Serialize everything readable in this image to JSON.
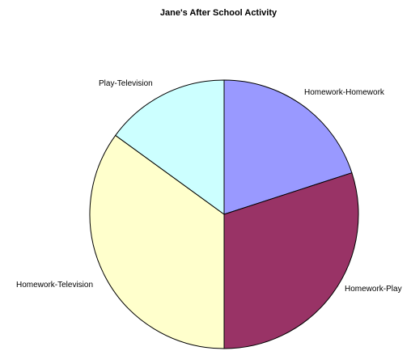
{
  "chart_data": {
    "type": "pie",
    "title": "Jane's After School Activity",
    "slices": [
      {
        "label": "Homework-Homework",
        "value": 20,
        "color": "#9999ff"
      },
      {
        "label": "Homework-Play",
        "value": 30,
        "color": "#993366"
      },
      {
        "label": "Homework-Television",
        "value": 35,
        "color": "#ffffcc"
      },
      {
        "label": "Play-Television",
        "value": 15,
        "color": "#ccffff"
      }
    ],
    "legend": "none",
    "start_angle_deg": 0,
    "direction": "clockwise"
  }
}
